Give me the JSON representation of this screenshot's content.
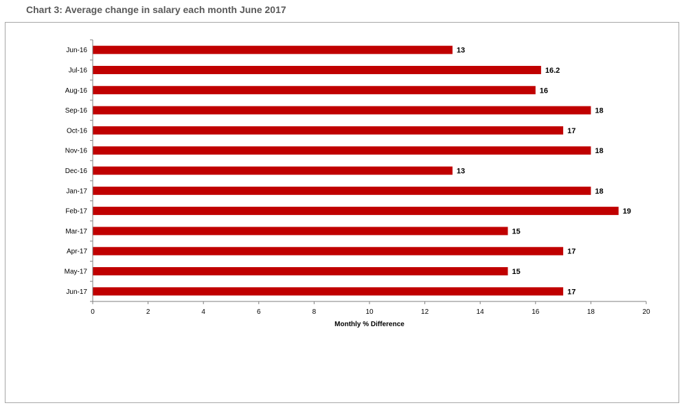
{
  "title": "Chart 3: Average change in salary each month June 2017",
  "colors": {
    "bar": "#c00000",
    "axis": "#7f7f7f",
    "title": "#595959"
  },
  "chart_data": {
    "type": "bar",
    "orientation": "horizontal",
    "categories": [
      "Jun-16",
      "Jul-16",
      "Aug-16",
      "Sep-16",
      "Oct-16",
      "Nov-16",
      "Dec-16",
      "Jan-17",
      "Feb-17",
      "Mar-17",
      "Apr-17",
      "May-17",
      "Jun-17"
    ],
    "values": [
      13,
      16.2,
      16,
      18,
      17,
      18,
      13,
      18,
      19,
      15,
      17,
      15,
      17
    ],
    "data_labels": [
      "13",
      "16.2",
      "16",
      "18",
      "17",
      "18",
      "13",
      "18",
      "19",
      "15",
      "17",
      "15",
      "17"
    ],
    "xlabel": "Monthly % Difference",
    "ylabel": "",
    "xlim": [
      0,
      20
    ],
    "xticks": [
      "0",
      "2",
      "4",
      "6",
      "8",
      "10",
      "12",
      "14",
      "16",
      "18",
      "20"
    ],
    "grid": false,
    "legend": "none"
  }
}
